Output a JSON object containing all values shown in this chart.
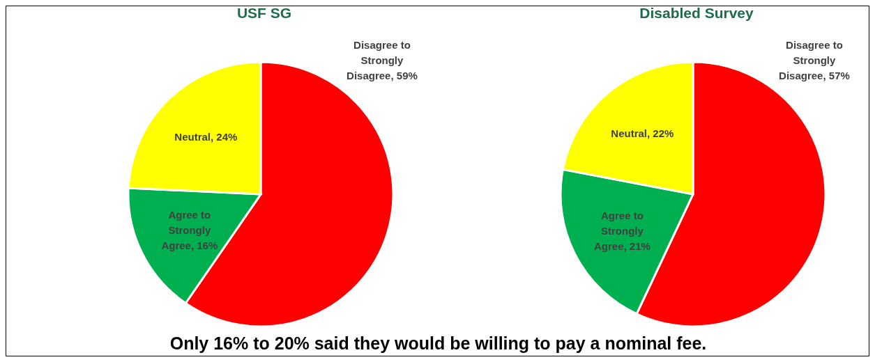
{
  "chart_data": [
    {
      "type": "pie",
      "title": "USF SG",
      "categories": [
        "Disagree to Strongly Disagree",
        "Agree to Strongly Agree",
        "Neutral"
      ],
      "values": [
        59,
        16,
        24
      ],
      "value_labels": [
        "59%",
        "16%",
        "24%"
      ],
      "colors": [
        "#ff0000",
        "#00b050",
        "#ffff00"
      ],
      "legend": false,
      "annotations": [
        "Only 16% to 20% said they would be willing to pay a nominal fee."
      ]
    },
    {
      "type": "pie",
      "title": "Disabled Survey",
      "categories": [
        "Disagree to Strongly Disagree",
        "Agree to Strongly Agree",
        "Neutral"
      ],
      "values": [
        57,
        21,
        22
      ],
      "value_labels": [
        "57%",
        "21%",
        "22%"
      ],
      "colors": [
        "#ff0000",
        "#00b050",
        "#ffff00"
      ],
      "legend": false
    }
  ]
}
